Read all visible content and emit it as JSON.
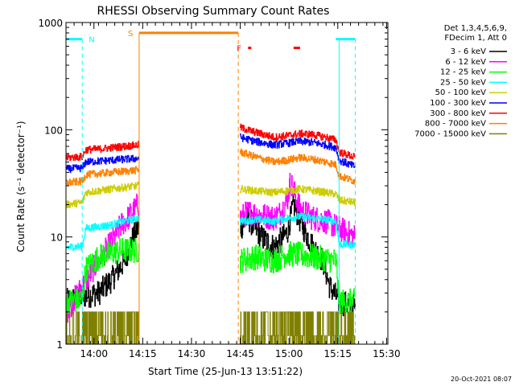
{
  "chart_data": {
    "type": "line",
    "title": "RHESSI Observing Summary Count Rates",
    "xlabel": "Start Time (25-Jun-13 13:51:22)",
    "ylabel": "Count Rate (s⁻¹ detector⁻¹)",
    "yscale": "log",
    "ylim": [
      1,
      1000
    ],
    "xlim_minutes": [
      0,
      99
    ],
    "x_ticks": [
      {
        "label": "14:00",
        "value": 8.6
      },
      {
        "label": "14:15",
        "value": 23.6
      },
      {
        "label": "14:30",
        "value": 38.6
      },
      {
        "label": "14:45",
        "value": 53.6
      },
      {
        "label": "15:00",
        "value": 68.6
      },
      {
        "label": "15:15",
        "value": 83.6
      },
      {
        "label": "15:30",
        "value": 98.6
      }
    ],
    "y_ticks": [
      {
        "label": "1",
        "value": 1
      },
      {
        "label": "10",
        "value": 10
      },
      {
        "label": "100",
        "value": 100
      },
      {
        "label": "1000",
        "value": 1000
      }
    ],
    "legend_header": [
      "Det 1,3,4,5,6,9,",
      "FDecim 1, Att 0"
    ],
    "legend_placement": "right",
    "grid": false,
    "gap_minutes": [
      22.5,
      53.5
    ],
    "series": [
      {
        "name": "3 - 6 keV",
        "color": "#000000",
        "points": [
          [
            0,
            2.5
          ],
          [
            5,
            2.8
          ],
          [
            10,
            3
          ],
          [
            14,
            4
          ],
          [
            18,
            6
          ],
          [
            20,
            9
          ],
          [
            22,
            12
          ],
          [
            53.5,
            12
          ],
          [
            56,
            15
          ],
          [
            60,
            10
          ],
          [
            64,
            8
          ],
          [
            68,
            11
          ],
          [
            70,
            20
          ],
          [
            73,
            12
          ],
          [
            76,
            8
          ],
          [
            79,
            6
          ],
          [
            81,
            3.5
          ],
          [
            84,
            2.5
          ],
          [
            89,
            2.2
          ]
        ]
      },
      {
        "name": "6 - 12 keV",
        "color": "#ff00ff",
        "points": [
          [
            0,
            2
          ],
          [
            10,
            6
          ],
          [
            14,
            9
          ],
          [
            17,
            13
          ],
          [
            19,
            15
          ],
          [
            21,
            18
          ],
          [
            22,
            20
          ],
          [
            53.5,
            15
          ],
          [
            56,
            17
          ],
          [
            60,
            16
          ],
          [
            64,
            15
          ],
          [
            66,
            17
          ],
          [
            68,
            22
          ],
          [
            69,
            33
          ],
          [
            70,
            27
          ],
          [
            72,
            18
          ],
          [
            76,
            15
          ],
          [
            80,
            14
          ],
          [
            84,
            12
          ],
          [
            89,
            10
          ]
        ]
      },
      {
        "name": "12 - 25 keV",
        "color": "#00ff00",
        "points": [
          [
            0,
            2.5
          ],
          [
            5,
            2.6
          ],
          [
            6,
            5
          ],
          [
            10,
            6.5
          ],
          [
            13,
            7
          ],
          [
            17,
            7.5
          ],
          [
            22,
            7.5
          ],
          [
            53.5,
            6
          ],
          [
            58,
            6.5
          ],
          [
            64,
            6
          ],
          [
            68,
            7
          ],
          [
            72,
            6.8
          ],
          [
            76,
            6.5
          ],
          [
            80,
            6.2
          ],
          [
            83,
            6
          ],
          [
            84,
            2.5
          ],
          [
            89,
            2.5
          ]
        ]
      },
      {
        "name": "25 - 50 keV",
        "color": "#00ffff",
        "points": [
          [
            0,
            8
          ],
          [
            5,
            8.2
          ],
          [
            6,
            12
          ],
          [
            10,
            12.5
          ],
          [
            14,
            13
          ],
          [
            18,
            14
          ],
          [
            22,
            15
          ],
          [
            53.5,
            14
          ],
          [
            58,
            14.5
          ],
          [
            64,
            14
          ],
          [
            68,
            15
          ],
          [
            72,
            15.5
          ],
          [
            76,
            15
          ],
          [
            80,
            14.5
          ],
          [
            83,
            14
          ],
          [
            84,
            8.5
          ],
          [
            89,
            8.5
          ]
        ]
      },
      {
        "name": "50 - 100 keV",
        "color": "#cccc00",
        "points": [
          [
            0,
            20
          ],
          [
            5,
            21
          ],
          [
            6,
            26
          ],
          [
            10,
            27
          ],
          [
            14,
            28
          ],
          [
            18,
            29
          ],
          [
            22,
            30
          ],
          [
            53.5,
            28
          ],
          [
            58,
            27
          ],
          [
            64,
            26
          ],
          [
            68,
            27
          ],
          [
            72,
            28
          ],
          [
            76,
            27
          ],
          [
            80,
            26
          ],
          [
            83,
            25
          ],
          [
            84,
            22
          ],
          [
            89,
            21
          ]
        ]
      },
      {
        "name": "100 - 300 keV",
        "color": "#0000ff",
        "points": [
          [
            0,
            43
          ],
          [
            5,
            44
          ],
          [
            6,
            50
          ],
          [
            10,
            51
          ],
          [
            14,
            52
          ],
          [
            18,
            53
          ],
          [
            22,
            54
          ],
          [
            53.5,
            85
          ],
          [
            58,
            78
          ],
          [
            64,
            72
          ],
          [
            68,
            75
          ],
          [
            72,
            78
          ],
          [
            76,
            76
          ],
          [
            80,
            72
          ],
          [
            83,
            68
          ],
          [
            84,
            52
          ],
          [
            89,
            45
          ]
        ]
      },
      {
        "name": "300 - 800 keV",
        "color": "#ff0000",
        "points": [
          [
            0,
            55
          ],
          [
            5,
            56
          ],
          [
            6,
            65
          ],
          [
            10,
            66
          ],
          [
            14,
            68
          ],
          [
            18,
            70
          ],
          [
            22,
            72
          ],
          [
            53.5,
            105
          ],
          [
            58,
            95
          ],
          [
            64,
            85
          ],
          [
            68,
            88
          ],
          [
            72,
            92
          ],
          [
            76,
            90
          ],
          [
            80,
            85
          ],
          [
            83,
            80
          ],
          [
            84,
            62
          ],
          [
            89,
            55
          ]
        ]
      },
      {
        "name": "800 - 7000 keV",
        "color": "#ff8000",
        "points": [
          [
            0,
            32
          ],
          [
            5,
            33
          ],
          [
            6,
            38
          ],
          [
            10,
            39
          ],
          [
            14,
            40
          ],
          [
            18,
            41
          ],
          [
            22,
            42
          ],
          [
            53.5,
            62
          ],
          [
            58,
            56
          ],
          [
            64,
            50
          ],
          [
            68,
            52
          ],
          [
            72,
            55
          ],
          [
            76,
            53
          ],
          [
            80,
            50
          ],
          [
            83,
            47
          ],
          [
            84,
            37
          ],
          [
            89,
            33
          ]
        ]
      },
      {
        "name": "7000 - 15000 keV",
        "color": "#808000",
        "points": [
          [
            0,
            2
          ],
          [
            10,
            2
          ],
          [
            22,
            2
          ],
          [
            53.5,
            2
          ],
          [
            89,
            2
          ]
        ]
      }
    ],
    "annotations": [
      {
        "label": "N",
        "color": "#00ffff",
        "bars_minutes": [
          [
            0,
            5
          ],
          [
            83,
            89
          ]
        ],
        "level": 700,
        "dashed_lines_minutes": [
          5,
          89
        ],
        "solid_lines_minutes": [
          0,
          84
        ]
      },
      {
        "label": "S",
        "color": "#ff8000",
        "bars_minutes": [
          [
            22.5,
            53
          ]
        ],
        "level": 800,
        "solid_lines_minutes": [
          22.5
        ],
        "dashed_lines_minutes": [
          53
        ]
      },
      {
        "label": "F",
        "color": "#ff0000",
        "bars_minutes": [
          [
            56,
            57
          ],
          [
            70,
            72
          ]
        ],
        "level": 580
      }
    ]
  },
  "footer": {
    "timestamp": "20-Oct-2021 08:07"
  }
}
